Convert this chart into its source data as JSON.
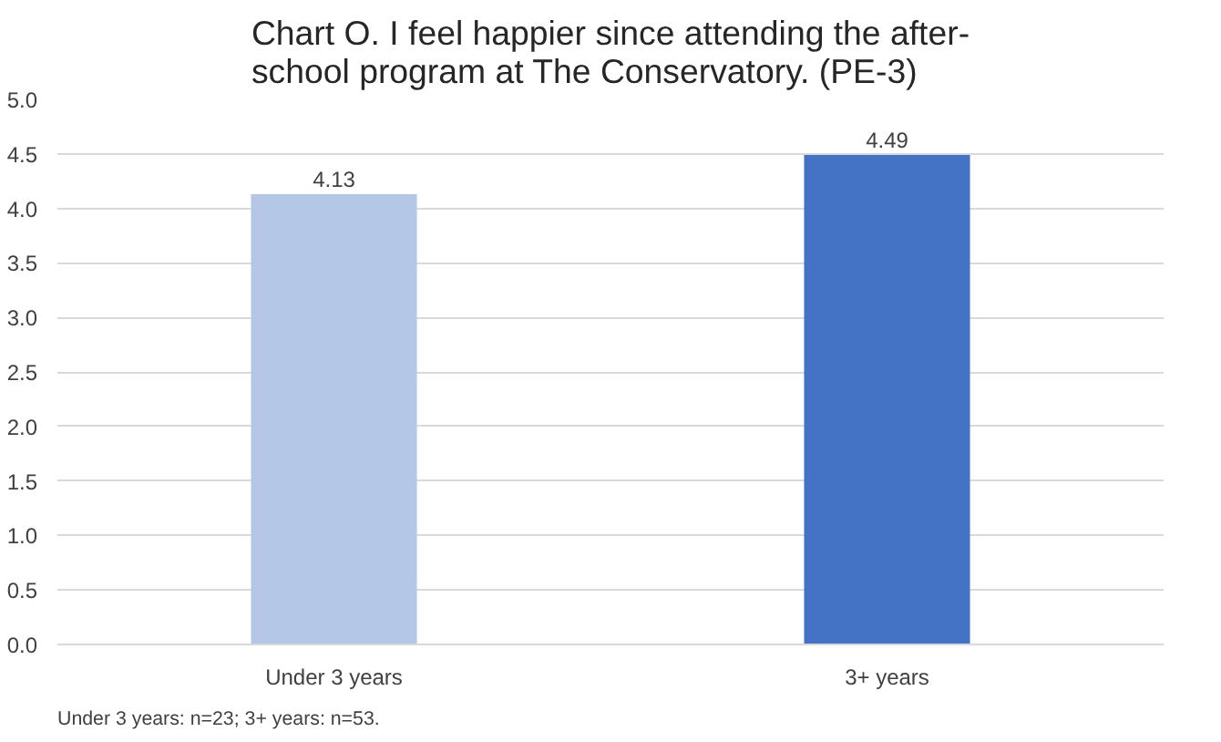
{
  "chart_data": {
    "type": "bar",
    "title": "Chart O. I feel happier since attending the after-school program at The Conservatory. (PE-3)",
    "categories": [
      "Under 3 years",
      "3+ years"
    ],
    "values": [
      4.13,
      4.49
    ],
    "colors": [
      "#b4c7e7",
      "#4472c4"
    ],
    "ylim": [
      0,
      5
    ],
    "yticks": [
      {
        "value": 0,
        "label": "0.0"
      },
      {
        "value": 0.5,
        "label": "0.5"
      },
      {
        "value": 1,
        "label": "1.0"
      },
      {
        "value": 1.5,
        "label": "1.5"
      },
      {
        "value": 2,
        "label": "2.0"
      },
      {
        "value": 2.5,
        "label": "2.5"
      },
      {
        "value": 3,
        "label": "3.0"
      },
      {
        "value": 3.5,
        "label": "3.5"
      },
      {
        "value": 4,
        "label": "4.0"
      },
      {
        "value": 4.5,
        "label": "4.5"
      },
      {
        "value": 5,
        "label": "5.0"
      }
    ],
    "grid": "y",
    "data_labels": true,
    "annotations": [
      "Under 3 years: n=23; 3+ years: n=53."
    ]
  }
}
